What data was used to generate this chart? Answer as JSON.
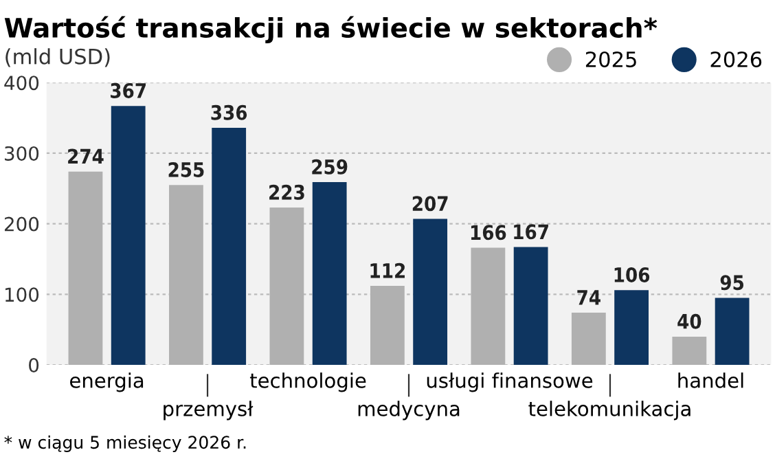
{
  "chart_data": {
    "type": "bar",
    "title": "Wartość transakcji na świecie w sektorach*",
    "subtitle": "(mld USD)",
    "categories": [
      "energia",
      "przemysł",
      "technologie",
      "medycyna",
      "usługi finansowe",
      "telekomunikacja",
      "handel"
    ],
    "series": [
      {
        "name": "2025",
        "color": "#b0b0b0",
        "values": [
          274,
          255,
          223,
          112,
          166,
          74,
          40
        ]
      },
      {
        "name": "2026",
        "color": "#0e3560",
        "values": [
          367,
          336,
          259,
          207,
          167,
          106,
          95
        ]
      }
    ],
    "ylim": [
      0,
      400
    ],
    "yticks": [
      0,
      100,
      200,
      300,
      400
    ],
    "grid": "y",
    "legend": "top right",
    "data_labels": true,
    "annotations": [
      "* w ciągu 5 miesięcy 2026 r."
    ]
  }
}
